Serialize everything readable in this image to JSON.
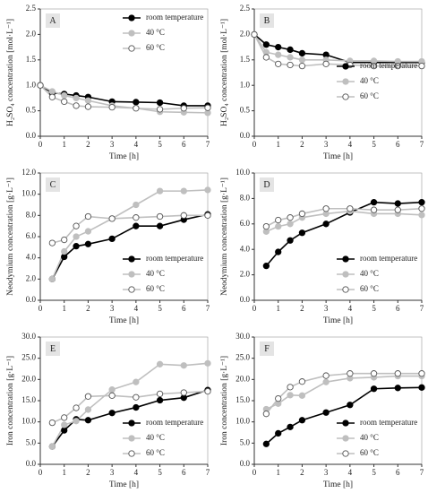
{
  "chart_data": [
    {
      "type": "line",
      "label": "A",
      "x_label": "Time [h]",
      "y_label": "H₂SO₄ concentration [mol·L⁻¹]",
      "x": [
        0,
        0.5,
        1,
        1.5,
        2,
        3,
        4,
        5,
        6,
        7
      ],
      "series": [
        {
          "name": "room temperature",
          "color": "#000000",
          "marker": "filled",
          "values": [
            1.0,
            0.85,
            0.83,
            0.8,
            0.77,
            0.68,
            0.67,
            0.66,
            0.6,
            0.6
          ]
        },
        {
          "name": "40 °C",
          "color": "#bfbfbf",
          "marker": "filled",
          "values": [
            1.0,
            0.88,
            0.8,
            0.75,
            0.7,
            0.6,
            0.55,
            0.48,
            0.47,
            0.46
          ]
        },
        {
          "name": "60 °C",
          "color": "#bfbfbf",
          "marker": "open",
          "values": [
            1.0,
            0.77,
            0.68,
            0.6,
            0.58,
            0.57,
            0.55,
            0.53,
            0.55,
            0.56
          ]
        }
      ],
      "xlim": [
        0,
        7
      ],
      "xticks": [
        0,
        1,
        2,
        3,
        4,
        5,
        6,
        7
      ],
      "ylim": [
        0,
        2.5
      ],
      "yticks": [
        {
          "value": 0,
          "label": "0.0"
        },
        0.5,
        {
          "value": 1,
          "label": "1.0"
        },
        1.5,
        {
          "value": 2,
          "label": "2.0"
        },
        2.5
      ],
      "legend": "upper right"
    },
    {
      "type": "line",
      "label": "B",
      "x_label": "Time [h]",
      "y_label": "H₂SO₄ concentration [mol·L⁻¹]",
      "x": [
        0,
        0.5,
        1,
        1.5,
        2,
        3,
        4,
        5,
        6,
        7
      ],
      "series": [
        {
          "name": "room temperature",
          "color": "#000000",
          "marker": "filled",
          "values": [
            2.0,
            1.8,
            1.75,
            1.7,
            1.63,
            1.6,
            1.45,
            1.45,
            1.45,
            1.45
          ]
        },
        {
          "name": "40 °C",
          "color": "#bfbfbf",
          "marker": "filled",
          "values": [
            2.0,
            1.65,
            1.6,
            1.55,
            1.5,
            1.5,
            1.48,
            1.48,
            1.47,
            1.47
          ]
        },
        {
          "name": "60 °C",
          "color": "#bfbfbf",
          "marker": "open",
          "values": [
            2.0,
            1.55,
            1.42,
            1.4,
            1.38,
            1.42,
            1.4,
            1.38,
            1.38,
            1.38
          ]
        }
      ],
      "xlim": [
        0,
        7
      ],
      "xticks": [
        0,
        1,
        2,
        3,
        4,
        5,
        6,
        7
      ],
      "ylim": [
        0,
        2.5
      ],
      "yticks": [
        {
          "value": 0,
          "label": "0.0"
        },
        0.5,
        {
          "value": 1,
          "label": "1.0"
        },
        1.5,
        {
          "value": 2,
          "label": "2.0"
        },
        2.5
      ],
      "legend": "center right"
    },
    {
      "type": "line",
      "label": "C",
      "x_label": "Time [h]",
      "y_label": "Neodymium concentration [g·L⁻¹]",
      "x": [
        0.5,
        1,
        1.5,
        2,
        3,
        4,
        5,
        6,
        7
      ],
      "series": [
        {
          "name": "room temperature",
          "color": "#000000",
          "marker": "filled",
          "values": [
            2.0,
            4.1,
            5.1,
            5.3,
            5.8,
            7.0,
            7.0,
            7.6,
            8.1
          ]
        },
        {
          "name": "40 °C",
          "color": "#bfbfbf",
          "marker": "filled",
          "values": [
            2.0,
            4.6,
            6.0,
            6.5,
            7.7,
            9.0,
            10.3,
            10.3,
            10.4
          ]
        },
        {
          "name": "60 °C",
          "color": "#bfbfbf",
          "marker": "open",
          "values": [
            5.4,
            5.7,
            7.0,
            7.9,
            7.7,
            7.8,
            7.9,
            8.0,
            8.0
          ]
        }
      ],
      "xlim": [
        0,
        7
      ],
      "xticks": [
        0,
        1,
        2,
        3,
        4,
        5,
        6,
        7
      ],
      "ylim": [
        0,
        12
      ],
      "yticks": [
        {
          "value": 0,
          "label": "0.0"
        },
        {
          "value": 2,
          "label": "2.0"
        },
        {
          "value": 4,
          "label": "4.0"
        },
        {
          "value": 6,
          "label": "6.0"
        },
        {
          "value": 8,
          "label": "8.0"
        },
        {
          "value": 10,
          "label": "10.0"
        },
        {
          "value": 12,
          "label": "12.0"
        }
      ],
      "legend": "lower right"
    },
    {
      "type": "line",
      "label": "D",
      "x_label": "Time [h]",
      "y_label": "Neodymium concentration [g·L⁻¹]",
      "x": [
        0.5,
        1,
        1.5,
        2,
        3,
        4,
        5,
        6,
        7
      ],
      "series": [
        {
          "name": "room temperature",
          "color": "#000000",
          "marker": "filled",
          "values": [
            2.7,
            3.8,
            4.7,
            5.3,
            6.0,
            6.9,
            7.7,
            7.6,
            7.7
          ]
        },
        {
          "name": "40 °C",
          "color": "#bfbfbf",
          "marker": "filled",
          "values": [
            5.4,
            5.8,
            6.0,
            6.5,
            6.8,
            7.0,
            6.8,
            6.8,
            6.7
          ]
        },
        {
          "name": "60 °C",
          "color": "#bfbfbf",
          "marker": "open",
          "values": [
            5.8,
            6.3,
            6.5,
            6.8,
            7.2,
            7.2,
            7.1,
            7.1,
            7.2
          ]
        }
      ],
      "xlim": [
        0,
        7
      ],
      "xticks": [
        0,
        1,
        2,
        3,
        4,
        5,
        6,
        7
      ],
      "ylim": [
        0,
        10
      ],
      "yticks": [
        {
          "value": 0,
          "label": "0.0"
        },
        {
          "value": 2,
          "label": "2.0"
        },
        {
          "value": 4,
          "label": "4.0"
        },
        {
          "value": 6,
          "label": "6.0"
        },
        {
          "value": 8,
          "label": "8.0"
        },
        {
          "value": 10,
          "label": "10.0"
        }
      ],
      "legend": "lower right"
    },
    {
      "type": "line",
      "label": "E",
      "x_label": "Time [h]",
      "y_label": "Iron concentration [g·L⁻¹]",
      "x": [
        0.5,
        1,
        1.5,
        2,
        3,
        4,
        5,
        6,
        7
      ],
      "series": [
        {
          "name": "room temperature",
          "color": "#000000",
          "marker": "filled",
          "values": [
            4.2,
            8.0,
            10.6,
            10.4,
            12.1,
            13.4,
            15.1,
            15.7,
            17.5
          ]
        },
        {
          "name": "40 °C",
          "color": "#bfbfbf",
          "marker": "filled",
          "values": [
            4.2,
            9.3,
            10.2,
            12.9,
            17.6,
            19.4,
            23.6,
            23.3,
            23.8
          ]
        },
        {
          "name": "60 °C",
          "color": "#bfbfbf",
          "marker": "open",
          "values": [
            9.8,
            11.0,
            13.3,
            16.0,
            16.2,
            15.8,
            16.6,
            16.9,
            17.2
          ]
        }
      ],
      "xlim": [
        0,
        7
      ],
      "xticks": [
        0,
        1,
        2,
        3,
        4,
        5,
        6,
        7
      ],
      "ylim": [
        0,
        30
      ],
      "yticks": [
        {
          "value": 0,
          "label": "0.0"
        },
        {
          "value": 5,
          "label": "5.0"
        },
        {
          "value": 10,
          "label": "10.0"
        },
        {
          "value": 15,
          "label": "15.0"
        },
        {
          "value": 20,
          "label": "20.0"
        },
        {
          "value": 25,
          "label": "25.0"
        },
        {
          "value": 30,
          "label": "30.0"
        }
      ],
      "legend": "lower right"
    },
    {
      "type": "line",
      "label": "F",
      "x_label": "Time [h]",
      "y_label": "Iron concentration [g·L⁻¹]",
      "x": [
        0.5,
        1,
        1.5,
        2,
        3,
        4,
        5,
        6,
        7
      ],
      "series": [
        {
          "name": "room temperature",
          "color": "#000000",
          "marker": "filled",
          "values": [
            4.8,
            7.3,
            8.8,
            10.4,
            12.2,
            14.0,
            17.8,
            18.0,
            18.1
          ]
        },
        {
          "name": "40 °C",
          "color": "#bfbfbf",
          "marker": "filled",
          "values": [
            13.0,
            14.3,
            16.3,
            16.2,
            19.4,
            20.3,
            20.5,
            20.8,
            20.8
          ]
        },
        {
          "name": "60 °C",
          "color": "#bfbfbf",
          "marker": "open",
          "values": [
            11.9,
            15.5,
            18.2,
            19.5,
            20.9,
            21.4,
            21.4,
            21.4,
            21.4
          ]
        }
      ],
      "xlim": [
        0,
        7
      ],
      "xticks": [
        0,
        1,
        2,
        3,
        4,
        5,
        6,
        7
      ],
      "ylim": [
        0,
        30
      ],
      "yticks": [
        {
          "value": 0,
          "label": "0.0"
        },
        {
          "value": 5,
          "label": "5.0"
        },
        {
          "value": 10,
          "label": "10.0"
        },
        {
          "value": 15,
          "label": "15.0"
        },
        {
          "value": 20,
          "label": "20.0"
        },
        {
          "value": 25,
          "label": "25.0"
        },
        {
          "value": 30,
          "label": "30.0"
        }
      ],
      "legend": "lower right"
    }
  ]
}
